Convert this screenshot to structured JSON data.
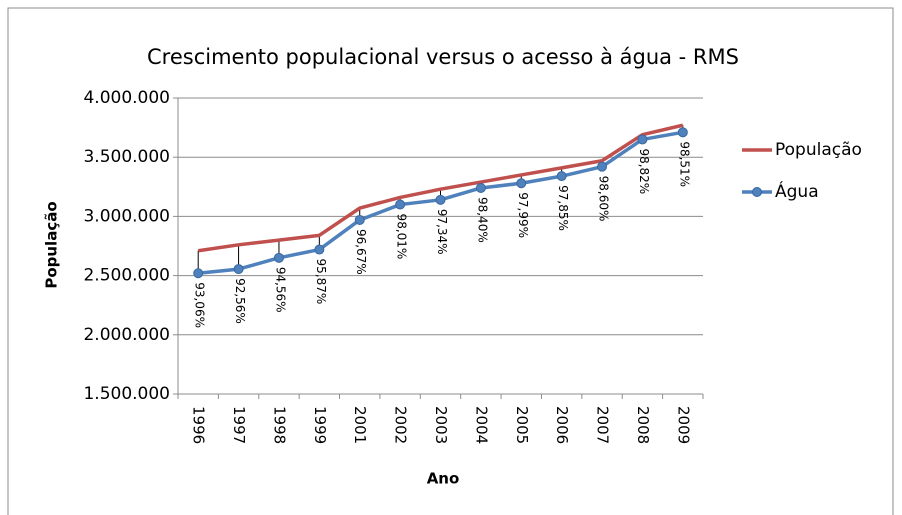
{
  "chart_data": {
    "type": "line",
    "title": "Crescimento populacional versus o acesso à água - RMS",
    "x_label": "Ano",
    "y_label": "População",
    "categories": [
      "1996",
      "1997",
      "1998",
      "1999",
      "2001",
      "2002",
      "2003",
      "2004",
      "2005",
      "2006",
      "2007",
      "2008",
      "2009"
    ],
    "series": [
      {
        "name": "População",
        "color": "#c0504d",
        "marker": false,
        "values": [
          2710000,
          2760000,
          2800000,
          2840000,
          3070000,
          3160000,
          3230000,
          3290000,
          3350000,
          3410000,
          3470000,
          3690000,
          3770000
        ]
      },
      {
        "name": "Água",
        "color": "#4f81bd",
        "marker": true,
        "values": [
          2520000,
          2555000,
          2650000,
          2720000,
          2970000,
          3100000,
          3140000,
          3240000,
          3280000,
          3340000,
          3420000,
          3650000,
          3710000
        ],
        "data_labels": [
          "93,06%",
          "92,56%",
          "94,56%",
          "95,87%",
          "96,67%",
          "98,01%",
          "97,34%",
          "98,40%",
          "97,99%",
          "97,85%",
          "98,60%",
          "98,82%",
          "98,51%"
        ]
      }
    ],
    "ylim": [
      1500000,
      4000000
    ],
    "yticks": [
      {
        "value": 1500000,
        "label": "1.500.000"
      },
      {
        "value": 2000000,
        "label": "2.000.000"
      },
      {
        "value": 2500000,
        "label": "2.500.000"
      },
      {
        "value": 3000000,
        "label": "3.000.000"
      },
      {
        "value": 3500000,
        "label": "3.500.000"
      },
      {
        "value": 4000000,
        "label": "4.000.000"
      }
    ],
    "grid": true,
    "legend": "right",
    "high_low_lines": true
  }
}
